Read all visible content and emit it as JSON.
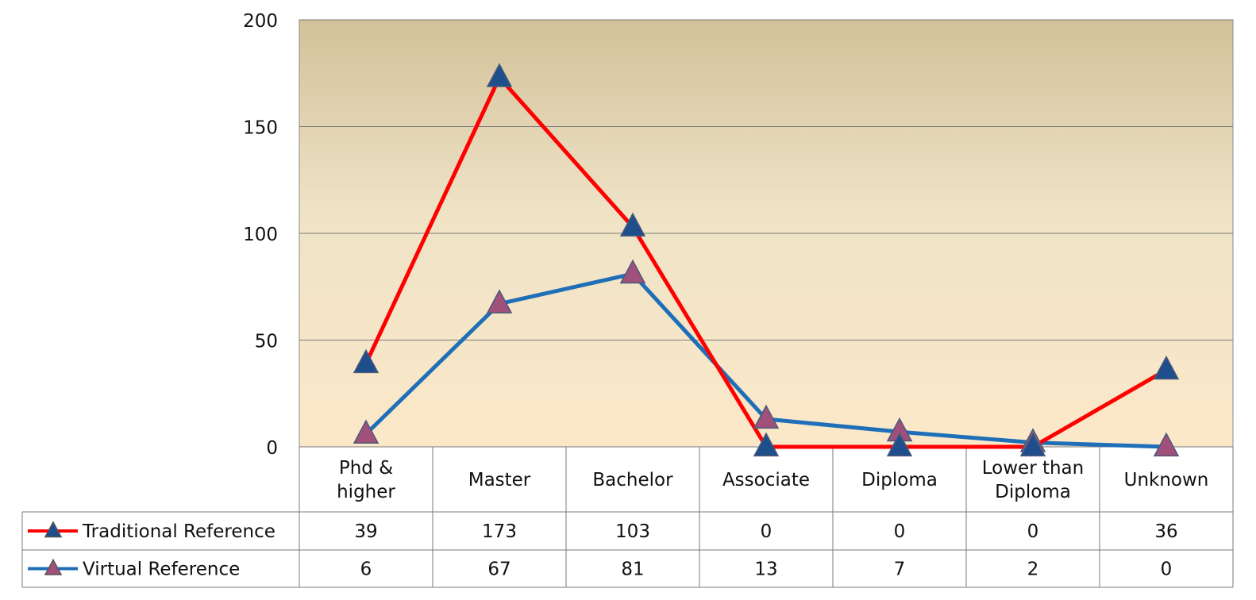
{
  "chart_data": {
    "type": "line",
    "categories": [
      [
        "Phd &",
        "higher"
      ],
      [
        "Master"
      ],
      [
        "Bachelor"
      ],
      [
        "Associate"
      ],
      [
        "Diploma"
      ],
      [
        "Lower than",
        "Diploma"
      ],
      [
        "Unknown"
      ]
    ],
    "series": [
      {
        "name": "Traditional Reference",
        "values": [
          39,
          173,
          103,
          0,
          0,
          0,
          36
        ],
        "line_color": "#ff0000",
        "marker_color": "#1f4e8c"
      },
      {
        "name": "Virtual Reference",
        "values": [
          6,
          67,
          81,
          13,
          7,
          2,
          0
        ],
        "line_color": "#1f6fb8",
        "marker_color": "#a0507a"
      }
    ],
    "ylim": [
      0,
      200
    ],
    "yticks": [
      0,
      50,
      100,
      150,
      200
    ],
    "grid": true,
    "legend": "data-table",
    "marker": "triangle",
    "plot_background_top": "#d2c29a",
    "plot_background_bottom": "#fbe8c9"
  }
}
